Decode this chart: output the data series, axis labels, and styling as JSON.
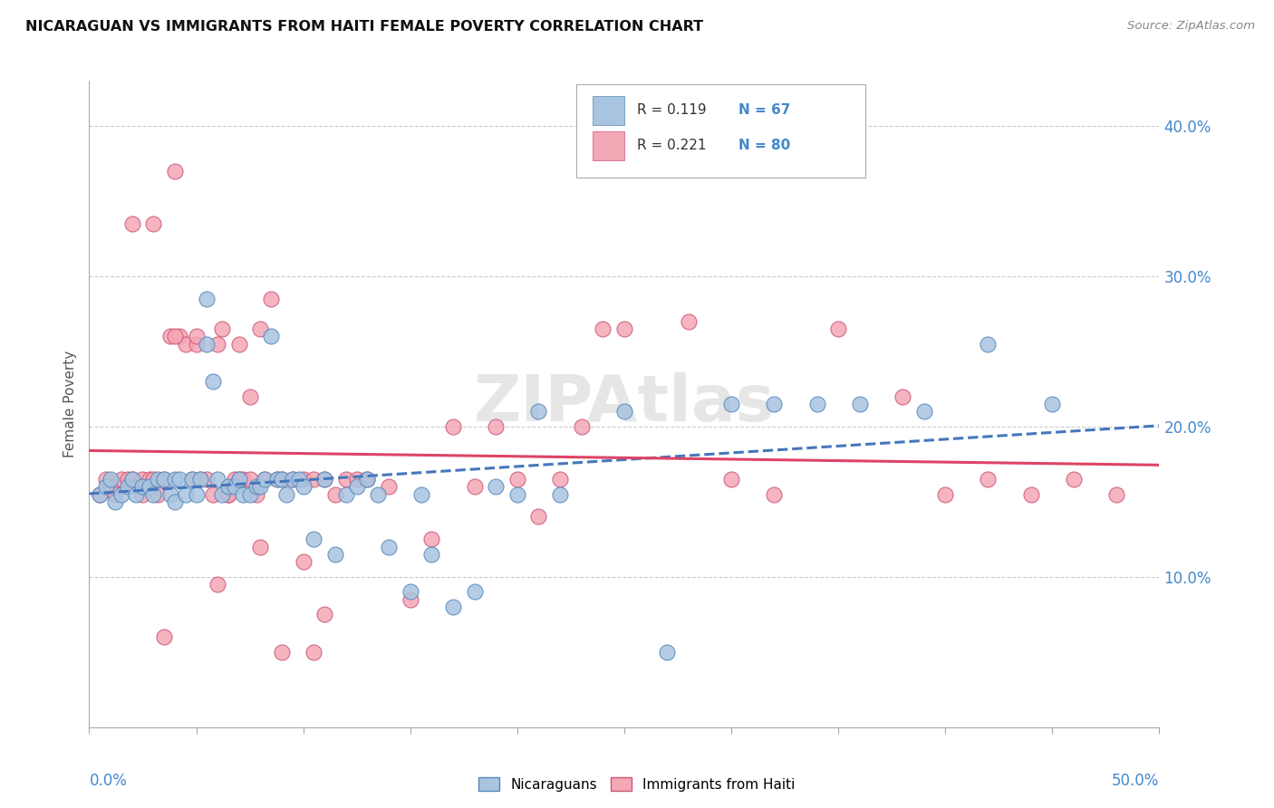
{
  "title": "NICARAGUAN VS IMMIGRANTS FROM HAITI FEMALE POVERTY CORRELATION CHART",
  "source": "Source: ZipAtlas.com",
  "ylabel": "Female Poverty",
  "xlim": [
    0.0,
    0.5
  ],
  "ylim": [
    0.0,
    0.43
  ],
  "legend_R": [
    0.119,
    0.221
  ],
  "legend_N": [
    67,
    80
  ],
  "blue_color": "#a8c4e0",
  "pink_color": "#f4a7b5",
  "blue_edge_color": "#5588bb",
  "pink_edge_color": "#cc5577",
  "blue_line_color": "#4477bb",
  "pink_line_color": "#dd4466",
  "text_color": "#4488cc",
  "grid_color": "#cccccc",
  "nic_x": [
    0.005,
    0.008,
    0.01,
    0.012,
    0.015,
    0.018,
    0.02,
    0.022,
    0.025,
    0.028,
    0.03,
    0.032,
    0.035,
    0.038,
    0.04,
    0.04,
    0.042,
    0.045,
    0.048,
    0.05,
    0.052,
    0.055,
    0.055,
    0.058,
    0.06,
    0.062,
    0.065,
    0.068,
    0.07,
    0.072,
    0.075,
    0.078,
    0.08,
    0.082,
    0.085,
    0.088,
    0.09,
    0.092,
    0.095,
    0.098,
    0.1,
    0.105,
    0.11,
    0.115,
    0.12,
    0.125,
    0.13,
    0.135,
    0.14,
    0.15,
    0.155,
    0.16,
    0.17,
    0.18,
    0.19,
    0.2,
    0.21,
    0.22,
    0.25,
    0.27,
    0.3,
    0.32,
    0.34,
    0.36,
    0.39,
    0.42,
    0.45
  ],
  "nic_y": [
    0.155,
    0.16,
    0.165,
    0.15,
    0.155,
    0.16,
    0.165,
    0.155,
    0.16,
    0.16,
    0.155,
    0.165,
    0.165,
    0.155,
    0.15,
    0.165,
    0.165,
    0.155,
    0.165,
    0.155,
    0.165,
    0.255,
    0.285,
    0.23,
    0.165,
    0.155,
    0.16,
    0.16,
    0.165,
    0.155,
    0.155,
    0.16,
    0.16,
    0.165,
    0.26,
    0.165,
    0.165,
    0.155,
    0.165,
    0.165,
    0.16,
    0.125,
    0.165,
    0.115,
    0.155,
    0.16,
    0.165,
    0.155,
    0.12,
    0.09,
    0.155,
    0.115,
    0.08,
    0.09,
    0.16,
    0.155,
    0.21,
    0.155,
    0.21,
    0.05,
    0.215,
    0.215,
    0.215,
    0.215,
    0.21,
    0.255,
    0.215
  ],
  "hai_x": [
    0.005,
    0.008,
    0.01,
    0.012,
    0.015,
    0.018,
    0.02,
    0.022,
    0.025,
    0.028,
    0.03,
    0.032,
    0.035,
    0.038,
    0.04,
    0.042,
    0.045,
    0.048,
    0.05,
    0.052,
    0.055,
    0.058,
    0.06,
    0.062,
    0.065,
    0.068,
    0.07,
    0.072,
    0.075,
    0.078,
    0.08,
    0.082,
    0.085,
    0.088,
    0.09,
    0.095,
    0.1,
    0.105,
    0.11,
    0.115,
    0.12,
    0.125,
    0.13,
    0.14,
    0.15,
    0.16,
    0.17,
    0.18,
    0.19,
    0.2,
    0.21,
    0.22,
    0.23,
    0.24,
    0.25,
    0.28,
    0.3,
    0.32,
    0.35,
    0.38,
    0.4,
    0.42,
    0.44,
    0.46,
    0.48,
    0.02,
    0.03,
    0.04,
    0.05,
    0.06,
    0.065,
    0.07,
    0.075,
    0.08,
    0.09,
    0.1,
    0.105,
    0.11,
    0.025,
    0.035
  ],
  "hai_y": [
    0.155,
    0.165,
    0.16,
    0.155,
    0.165,
    0.165,
    0.165,
    0.16,
    0.165,
    0.165,
    0.165,
    0.155,
    0.165,
    0.26,
    0.37,
    0.26,
    0.255,
    0.165,
    0.255,
    0.165,
    0.165,
    0.155,
    0.255,
    0.265,
    0.155,
    0.165,
    0.255,
    0.165,
    0.22,
    0.155,
    0.265,
    0.165,
    0.285,
    0.165,
    0.165,
    0.165,
    0.165,
    0.165,
    0.165,
    0.155,
    0.165,
    0.165,
    0.165,
    0.16,
    0.085,
    0.125,
    0.2,
    0.16,
    0.2,
    0.165,
    0.14,
    0.165,
    0.2,
    0.265,
    0.265,
    0.27,
    0.165,
    0.155,
    0.265,
    0.22,
    0.155,
    0.165,
    0.155,
    0.165,
    0.155,
    0.335,
    0.335,
    0.26,
    0.26,
    0.095,
    0.155,
    0.165,
    0.165,
    0.12,
    0.05,
    0.11,
    0.05,
    0.075,
    0.155,
    0.06
  ]
}
